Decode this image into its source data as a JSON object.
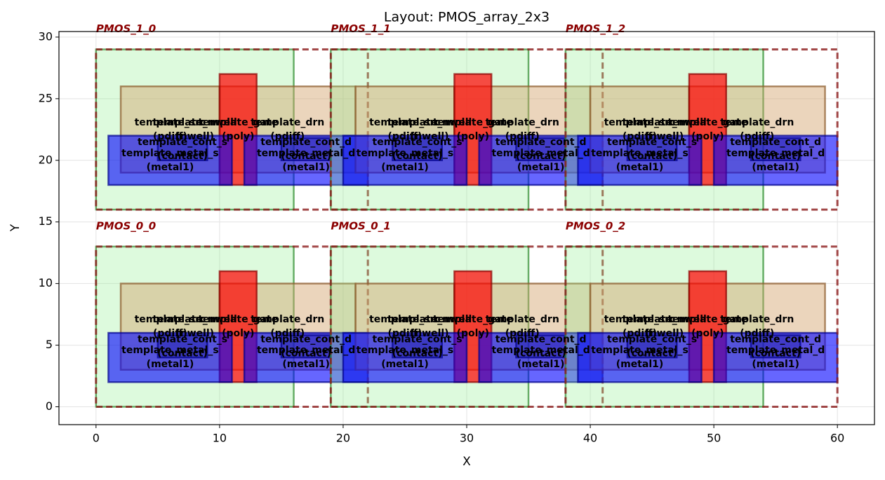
{
  "chart_data": {
    "type": "layout",
    "title": "Layout: PMOS_array_2x3",
    "xlabel": "X",
    "ylabel": "Y",
    "xlim": [
      -3,
      63
    ],
    "ylim": [
      -1.45,
      30.45
    ],
    "xticks": [
      0,
      10,
      20,
      30,
      40,
      50,
      60
    ],
    "yticks": [
      0,
      5,
      10,
      15,
      20,
      25,
      30
    ],
    "grid": true,
    "instances": [
      {
        "name": "PMOS_0_0",
        "x": 0,
        "y": 0
      },
      {
        "name": "PMOS_0_1",
        "x": 19,
        "y": 0
      },
      {
        "name": "PMOS_0_2",
        "x": 38,
        "y": 0
      },
      {
        "name": "PMOS_1_0",
        "x": 0,
        "y": 16
      },
      {
        "name": "PMOS_1_1",
        "x": 19,
        "y": 16
      },
      {
        "name": "PMOS_1_2",
        "x": 38,
        "y": 16
      }
    ],
    "shapes": [
      {
        "name": "template_nwell",
        "layer": "(nwell)",
        "color": "#90ee90",
        "edge": "#2e8b2e",
        "opacity": 0.3,
        "x0": 0,
        "y0": 0,
        "x1": 16,
        "y1": 13
      },
      {
        "name": "template_src",
        "layer": "(pdiff)",
        "color": "#d2a26a",
        "edge": "#8b5a2b",
        "opacity": 0.45,
        "x0": 2,
        "y0": 3,
        "x1": 10,
        "y1": 10
      },
      {
        "name": "template_drn",
        "layer": "(pdiff)",
        "color": "#d2a26a",
        "edge": "#8b5a2b",
        "opacity": 0.45,
        "x0": 10,
        "y0": 3,
        "x1": 21,
        "y1": 10
      },
      {
        "name": "template_gate",
        "layer": "(poly)",
        "color": "#ff0000",
        "edge": "#8b0000",
        "opacity": 0.7,
        "x0": 10,
        "y0": 2,
        "x1": 13,
        "y1": 11
      },
      {
        "name": "template_metal_s",
        "layer": "(metal1)",
        "color": "#0000ff",
        "edge": "#00008b",
        "opacity": 0.6,
        "x0": 1,
        "y0": 2,
        "x1": 11,
        "y1": 6
      },
      {
        "name": "template_metal_d",
        "layer": "(metal1)",
        "color": "#0000ff",
        "edge": "#00008b",
        "opacity": 0.6,
        "x0": 12,
        "y0": 2,
        "x1": 22,
        "y1": 6
      },
      {
        "name": "template_cont_s",
        "layer": "(contact)",
        "color": "#00008b",
        "edge": "#00008b",
        "opacity": 0.3,
        "x0": 5,
        "y0": 4,
        "x1": 9,
        "y1": 5.8
      },
      {
        "name": "template_cont_d",
        "layer": "(contact)",
        "color": "#00008b",
        "edge": "#00008b",
        "opacity": 0.3,
        "x0": 15,
        "y0": 4,
        "x1": 19,
        "y1": 5.8
      }
    ]
  }
}
